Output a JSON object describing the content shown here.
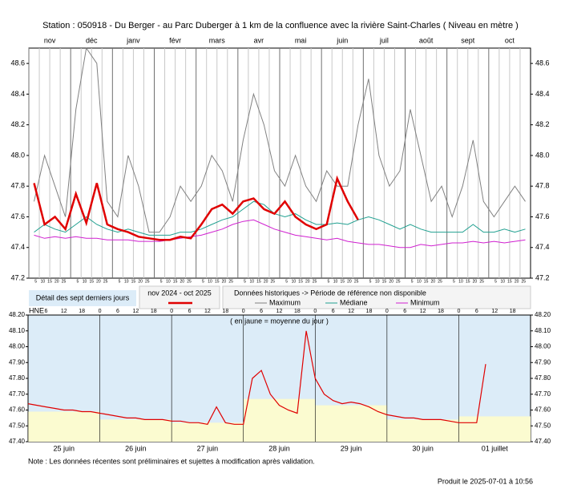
{
  "chart_data": [
    {
      "type": "line",
      "title": "Station : 050918      -  Du Berger - au Parc Duberger à 1 km de la confluence avec la rivière Saint-Charles   ( Niveau en mètre )",
      "categories": [
        "nov",
        null,
        null,
        null,
        "déc",
        null,
        null,
        null,
        "janv",
        null,
        null,
        null,
        "févr",
        null,
        null,
        null,
        "mars",
        null,
        null,
        null,
        "avr",
        null,
        null,
        null,
        "mai",
        null,
        null,
        null,
        "juin",
        null,
        null,
        null,
        "juil",
        null,
        null,
        null,
        "août",
        null,
        null,
        null,
        "sept",
        null,
        null,
        null,
        "oct",
        null,
        null,
        null
      ],
      "day_ticks": [
        5,
        10,
        15,
        20,
        25
      ],
      "ylim": [
        47.2,
        48.7
      ],
      "yticks": [
        47.2,
        47.4,
        47.6,
        47.8,
        {
          "value": 48,
          "label": "48.0"
        },
        48.2,
        48.4,
        48.6
      ],
      "legend_title": "Données historiques -> Période de référence non disponible",
      "series": [
        {
          "name": "nov 2024 - oct 2025",
          "color": "#e00000",
          "values": [
            47.82,
            47.55,
            47.6,
            47.52,
            47.75,
            47.56,
            47.82,
            47.55,
            47.52,
            47.5,
            47.47,
            47.46,
            47.45,
            47.45,
            47.47,
            47.46,
            47.55,
            47.65,
            47.68,
            47.62,
            47.7,
            47.72,
            47.65,
            47.62,
            47.7,
            47.6,
            47.55,
            47.52,
            47.55,
            47.85,
            47.7,
            47.58,
            null,
            null,
            null,
            null,
            null,
            null,
            null,
            null,
            null,
            null,
            null,
            null,
            null,
            null,
            null,
            null
          ]
        },
        {
          "name": "Maximum",
          "color": "#808080",
          "values": [
            47.7,
            48.0,
            47.8,
            47.6,
            48.3,
            48.7,
            48.6,
            47.7,
            47.6,
            48.0,
            47.8,
            47.5,
            47.5,
            47.6,
            47.8,
            47.7,
            47.8,
            48.0,
            47.9,
            47.7,
            48.1,
            48.4,
            48.2,
            47.9,
            47.8,
            48.0,
            47.8,
            47.7,
            47.9,
            47.8,
            47.8,
            48.2,
            48.5,
            48.0,
            47.8,
            47.9,
            48.3,
            48.0,
            47.7,
            47.8,
            47.6,
            47.8,
            48.1,
            47.7,
            47.6,
            47.7,
            47.8,
            47.7
          ]
        },
        {
          "name": "Médiane",
          "color": "#20a090",
          "values": [
            47.5,
            47.55,
            47.52,
            47.5,
            47.55,
            47.6,
            47.55,
            47.52,
            47.5,
            47.52,
            47.5,
            47.48,
            47.48,
            47.48,
            47.5,
            47.5,
            47.52,
            47.55,
            47.58,
            47.6,
            47.65,
            47.7,
            47.68,
            47.62,
            47.6,
            47.62,
            47.58,
            47.55,
            47.55,
            47.56,
            47.55,
            47.58,
            47.6,
            47.58,
            47.55,
            47.52,
            47.55,
            47.52,
            47.5,
            47.5,
            47.5,
            47.5,
            47.55,
            47.5,
            47.5,
            47.52,
            47.5,
            47.52
          ]
        },
        {
          "name": "Minimum",
          "color": "#d020d0",
          "values": [
            47.48,
            47.46,
            47.47,
            47.46,
            47.47,
            47.46,
            47.46,
            47.45,
            47.45,
            47.45,
            47.44,
            47.44,
            47.44,
            47.45,
            47.46,
            47.47,
            47.48,
            47.5,
            47.52,
            47.55,
            47.57,
            47.58,
            47.55,
            47.52,
            47.5,
            47.48,
            47.47,
            47.46,
            47.45,
            47.46,
            47.44,
            47.43,
            47.42,
            47.42,
            47.41,
            47.4,
            47.4,
            47.42,
            47.41,
            47.42,
            47.43,
            47.43,
            47.44,
            47.43,
            47.44,
            47.43,
            47.44,
            47.45
          ]
        }
      ]
    },
    {
      "type": "line",
      "title": "Détail des sept derniers jours",
      "annotation": "( en jaune = moyenne du jour )",
      "time_zone": "HNE",
      "hour_ticks": [
        0,
        6,
        12,
        18
      ],
      "categories": [
        null,
        null,
        null,
        null,
        "25 juin",
        null,
        null,
        null,
        null,
        null,
        null,
        null,
        "26 juin",
        null,
        null,
        null,
        null,
        null,
        null,
        null,
        "27 juin",
        null,
        null,
        null,
        null,
        null,
        null,
        null,
        "28 juin",
        null,
        null,
        null,
        null,
        null,
        null,
        null,
        "29 juin",
        null,
        null,
        null,
        null,
        null,
        null,
        null,
        "30 juin",
        null,
        null,
        null,
        null,
        null,
        null,
        null,
        "01 juillet",
        null,
        null,
        null
      ],
      "ylim": [
        47.4,
        48.2
      ],
      "yticks": [
        {
          "value": 47.4,
          "label": "47.40"
        },
        {
          "value": 47.5,
          "label": "47.50"
        },
        {
          "value": 47.6,
          "label": "47.60"
        },
        {
          "value": 47.7,
          "label": "47.70"
        },
        {
          "value": 47.8,
          "label": "47.80"
        },
        {
          "value": 47.9,
          "label": "47.90"
        },
        {
          "value": 48,
          "label": "48.00"
        },
        {
          "value": 48.1,
          "label": "48.10"
        },
        {
          "value": 48.2,
          "label": "48.20"
        }
      ],
      "daily_means": [
        47.59,
        47.54,
        47.52,
        47.67,
        47.63,
        47.54,
        47.56
      ],
      "series": [
        {
          "color": "#e00000",
          "values": [
            47.64,
            47.63,
            47.62,
            47.61,
            47.6,
            47.6,
            47.59,
            47.59,
            47.58,
            47.57,
            47.56,
            47.55,
            47.55,
            47.54,
            47.54,
            47.54,
            47.53,
            47.53,
            47.52,
            47.52,
            47.51,
            47.62,
            47.52,
            47.51,
            47.51,
            47.8,
            47.85,
            47.7,
            47.63,
            47.6,
            47.58,
            48.1,
            47.8,
            47.7,
            47.66,
            47.64,
            47.65,
            47.64,
            47.62,
            47.59,
            47.57,
            47.56,
            47.55,
            47.55,
            47.54,
            47.54,
            47.54,
            47.53,
            47.52,
            47.52,
            47.52,
            47.89,
            null,
            null,
            null,
            null
          ]
        }
      ]
    }
  ],
  "note": "Note : Les données récentes sont préliminaires et sujettes à modification après validation.",
  "footer": "Produit le 2025-07-01 à 10:56"
}
